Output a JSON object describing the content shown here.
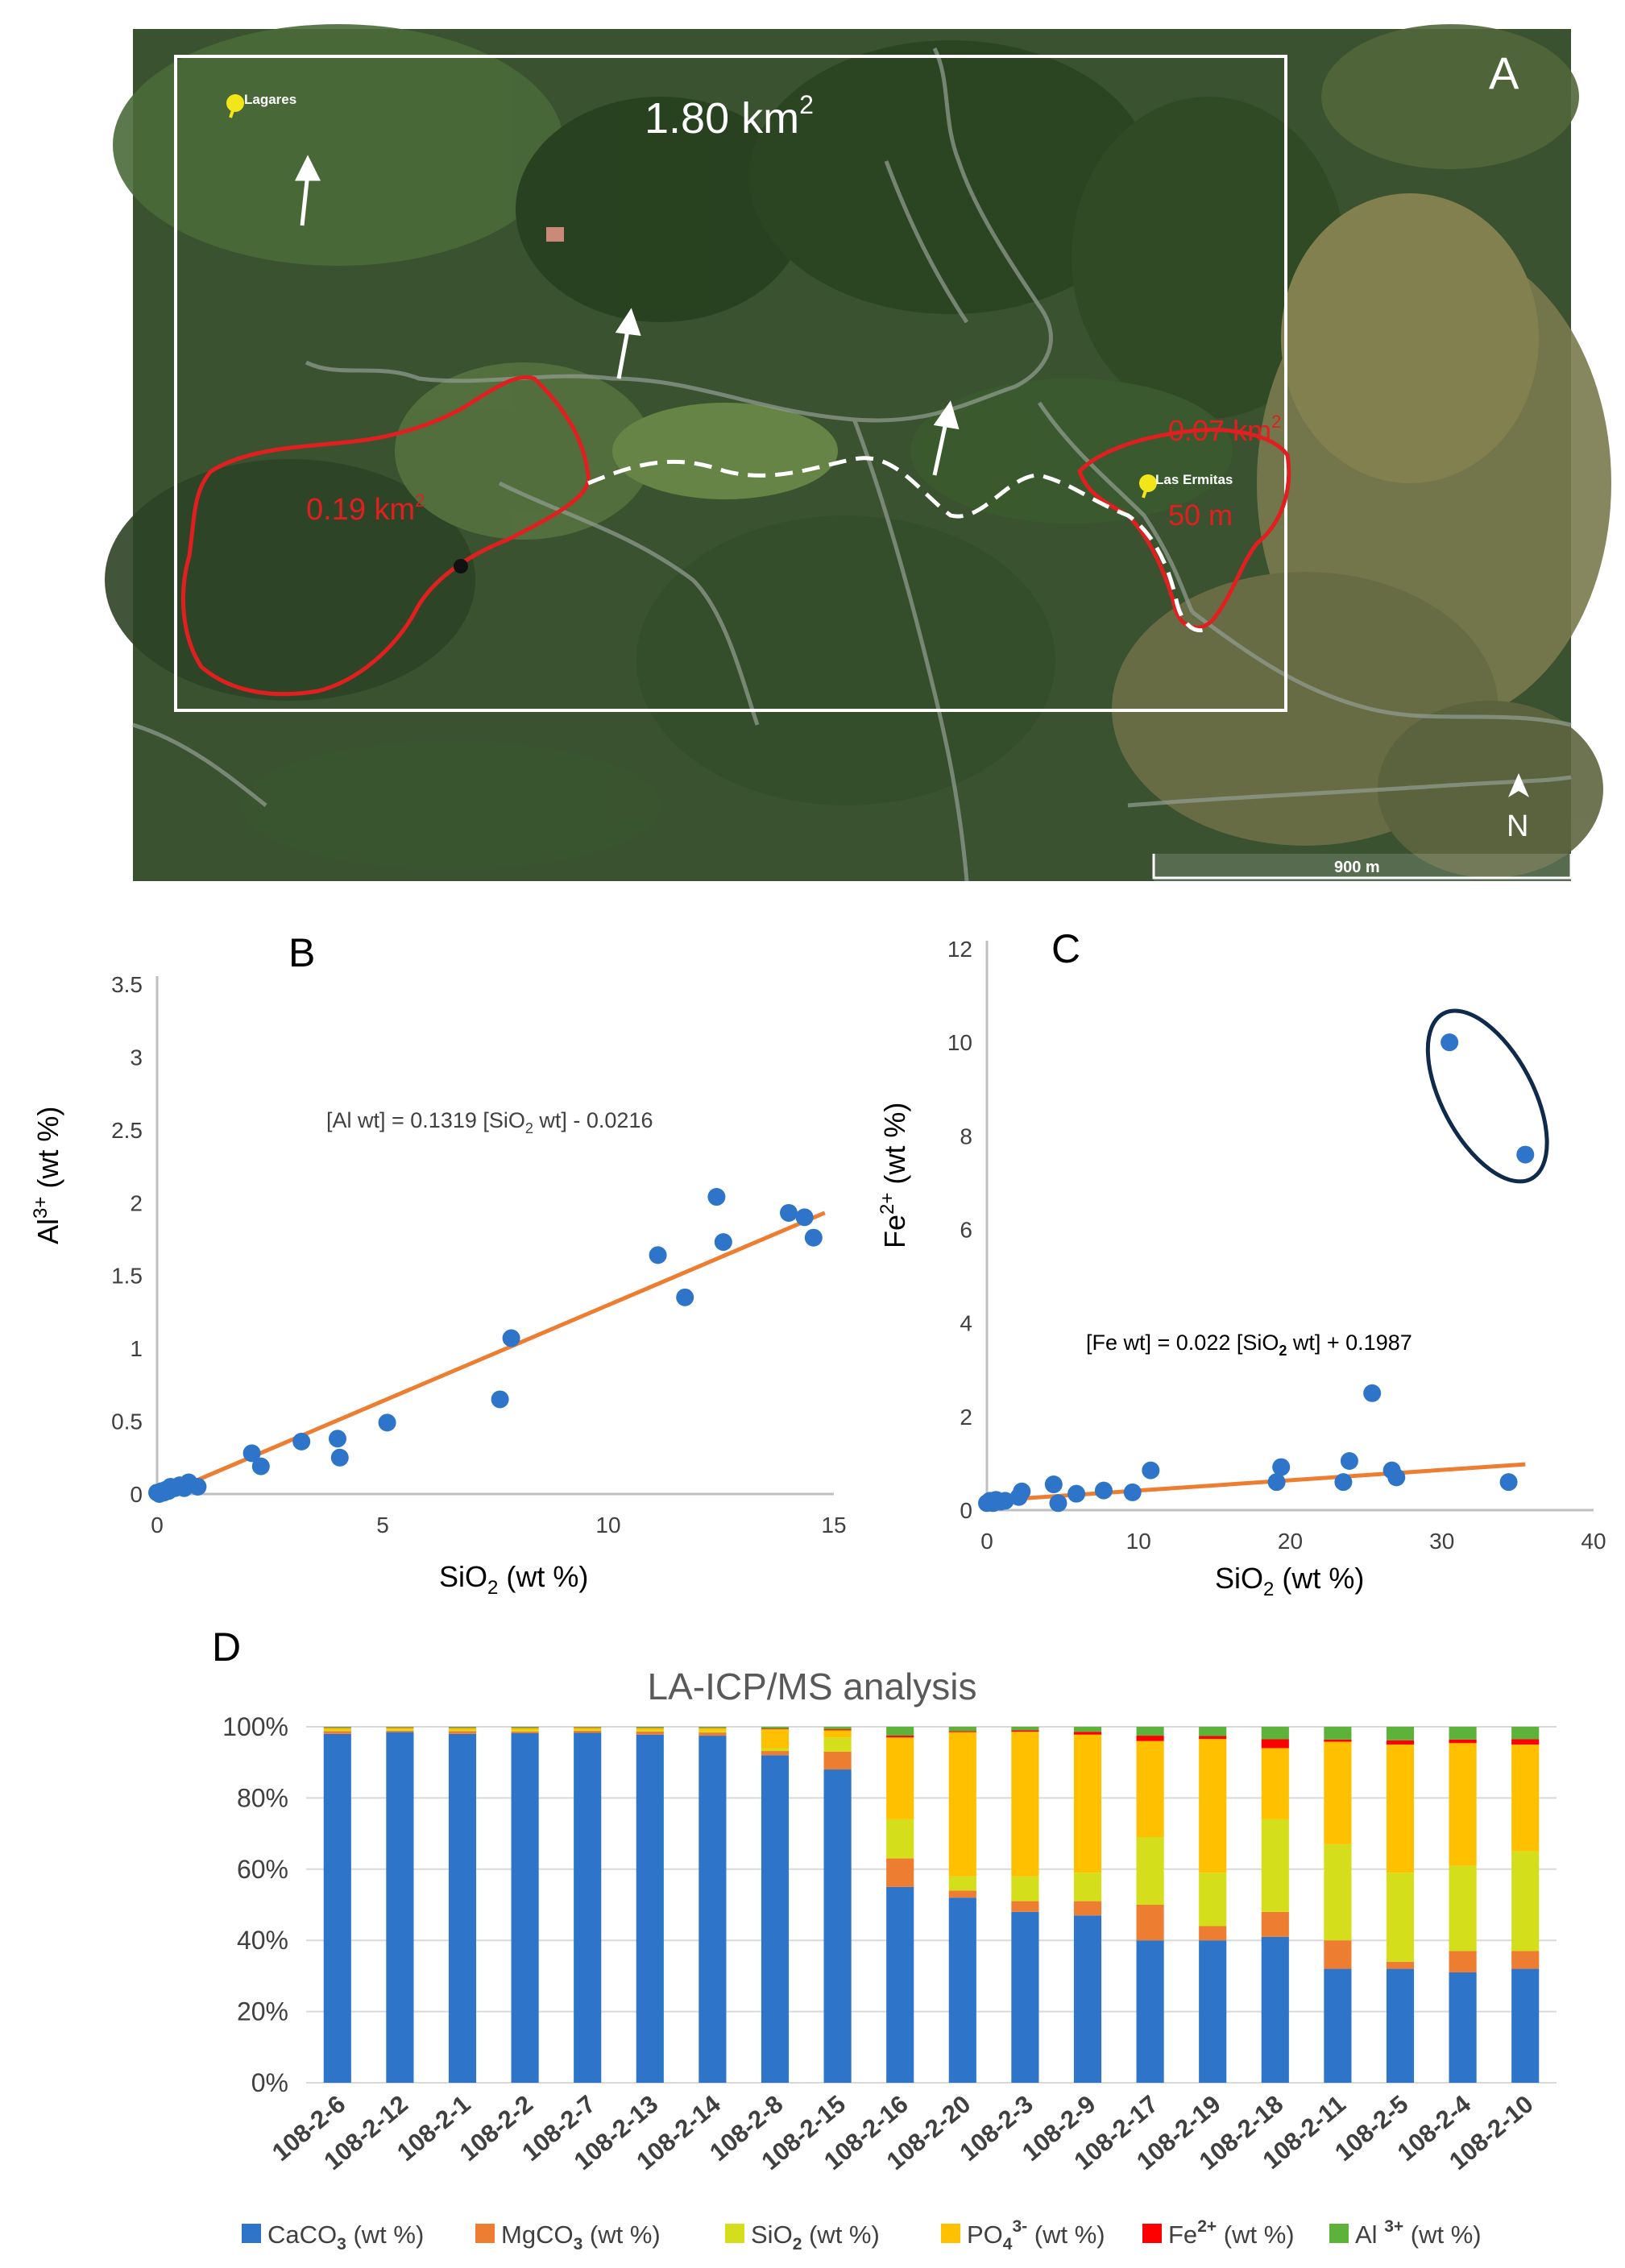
{
  "colors": {
    "blue": "#2E75C9",
    "orange": "#ED7D31",
    "lime": "#D4DE1A",
    "gold": "#FFC000",
    "red": "#FF0000",
    "green": "#5DB339",
    "boundary_red": "#E02020",
    "axis": "#BFBFBF",
    "text": "#404040",
    "ellipse": "#0F2A4A"
  },
  "panel_a": {
    "letter": "A",
    "area_label": "1.80 km",
    "area_sup": "2",
    "zone_west_label": "0.19 km",
    "zone_west_sup": "2",
    "zone_east_label": "0.07 km",
    "zone_east_sup": "2",
    "distance_label": "50 m",
    "place_lagares": "Lagares",
    "place_ermitas": "Las Ermitas",
    "scale_label": "900 m",
    "north_label": "N"
  },
  "chart_data": [
    {
      "id": "B",
      "type": "scatter",
      "letter": "B",
      "xlabel": "SiO",
      "xlabel_sub": "2",
      "xlabel_tail": " (wt %)",
      "ylabel": "Al",
      "ylabel_sup": "3+",
      "ylabel_tail": " (wt %)",
      "xlim": [
        0,
        15
      ],
      "ylim": [
        0,
        3.5
      ],
      "xticks": [
        "0",
        "5",
        "10",
        "15"
      ],
      "xtick_values": [
        0,
        5,
        10,
        15
      ],
      "yticks": [
        "0",
        "0.5",
        "1",
        "1.5",
        "2",
        "2.5",
        "3",
        "3.5"
      ],
      "ytick_values": [
        0,
        0.5,
        1,
        1.5,
        2,
        2.5,
        3,
        3.5
      ],
      "equation_prefix": "[Al wt] = 0.1319 [SiO",
      "equation_sub": "2",
      "equation_suffix": " wt] - 0.0216",
      "trend": {
        "slope": 0.1319,
        "intercept": -0.0216,
        "x0": 0.16,
        "x1": 14.8
      },
      "points": [
        {
          "x": 0.0,
          "y": 0.01
        },
        {
          "x": 0.05,
          "y": 0.0
        },
        {
          "x": 0.1,
          "y": 0.02
        },
        {
          "x": 0.15,
          "y": 0.01
        },
        {
          "x": 0.2,
          "y": 0.03
        },
        {
          "x": 0.25,
          "y": 0.02
        },
        {
          "x": 0.3,
          "y": 0.05
        },
        {
          "x": 0.4,
          "y": 0.04
        },
        {
          "x": 0.5,
          "y": 0.06
        },
        {
          "x": 0.6,
          "y": 0.04
        },
        {
          "x": 0.7,
          "y": 0.08
        },
        {
          "x": 0.9,
          "y": 0.05
        },
        {
          "x": 2.1,
          "y": 0.28
        },
        {
          "x": 2.3,
          "y": 0.19
        },
        {
          "x": 3.2,
          "y": 0.36
        },
        {
          "x": 4.0,
          "y": 0.38
        },
        {
          "x": 4.05,
          "y": 0.25
        },
        {
          "x": 5.1,
          "y": 0.49
        },
        {
          "x": 7.6,
          "y": 0.65
        },
        {
          "x": 7.85,
          "y": 1.07
        },
        {
          "x": 11.1,
          "y": 1.64
        },
        {
          "x": 11.7,
          "y": 1.35
        },
        {
          "x": 12.4,
          "y": 2.04
        },
        {
          "x": 12.55,
          "y": 1.73
        },
        {
          "x": 14.0,
          "y": 1.93
        },
        {
          "x": 14.35,
          "y": 1.9
        },
        {
          "x": 14.55,
          "y": 1.76
        }
      ]
    },
    {
      "id": "C",
      "type": "scatter",
      "letter": "C",
      "xlabel": "SiO",
      "xlabel_sub": "2",
      "xlabel_tail": " (wt %)",
      "ylabel": "Fe",
      "ylabel_sup": "2+",
      "ylabel_tail": " (wt %)",
      "xlim": [
        0,
        40
      ],
      "ylim": [
        0,
        12
      ],
      "xticks": [
        "0",
        "10",
        "20",
        "30",
        "40"
      ],
      "xtick_values": [
        0,
        10,
        20,
        30,
        40
      ],
      "yticks": [
        "0",
        "2",
        "4",
        "6",
        "8",
        "10",
        "12"
      ],
      "ytick_values": [
        0,
        2,
        4,
        6,
        8,
        10,
        12
      ],
      "equation_prefix": "[Fe wt] = 0.022 [SiO",
      "equation_sub": "2",
      "equation_suffix": " wt] + 0.1987",
      "trend": {
        "slope": 0.022,
        "intercept": 0.1987,
        "x0": 0.5,
        "x1": 35.5
      },
      "circled_outliers": {
        "cx": 33.0,
        "cy": 8.85,
        "rx": 3.0,
        "ry": 2.0
      },
      "points": [
        {
          "x": 0.0,
          "y": 0.15
        },
        {
          "x": 0.2,
          "y": 0.2
        },
        {
          "x": 0.4,
          "y": 0.15
        },
        {
          "x": 0.6,
          "y": 0.22
        },
        {
          "x": 0.9,
          "y": 0.18
        },
        {
          "x": 1.2,
          "y": 0.2
        },
        {
          "x": 2.1,
          "y": 0.28
        },
        {
          "x": 2.3,
          "y": 0.4
        },
        {
          "x": 4.4,
          "y": 0.55
        },
        {
          "x": 4.7,
          "y": 0.15
        },
        {
          "x": 5.9,
          "y": 0.35
        },
        {
          "x": 7.7,
          "y": 0.42
        },
        {
          "x": 9.6,
          "y": 0.38
        },
        {
          "x": 10.8,
          "y": 0.85
        },
        {
          "x": 19.1,
          "y": 0.6
        },
        {
          "x": 19.4,
          "y": 0.92
        },
        {
          "x": 23.5,
          "y": 0.6
        },
        {
          "x": 23.9,
          "y": 1.05
        },
        {
          "x": 25.4,
          "y": 2.5
        },
        {
          "x": 26.7,
          "y": 0.85
        },
        {
          "x": 27.0,
          "y": 0.7
        },
        {
          "x": 34.4,
          "y": 0.6
        },
        {
          "x": 30.5,
          "y": 10.0
        },
        {
          "x": 35.5,
          "y": 7.6
        }
      ]
    },
    {
      "id": "D",
      "type": "bar",
      "stacked": true,
      "percent": true,
      "letter": "D",
      "title": "LA-ICP/MS analysis",
      "yticks": [
        "0%",
        "20%",
        "40%",
        "60%",
        "80%",
        "100%"
      ],
      "ytick_values": [
        0,
        20,
        40,
        60,
        80,
        100
      ],
      "ylim": [
        0,
        100
      ],
      "categories": [
        "108-2-6",
        "108-2-12",
        "108-2-1",
        "108-2-2",
        "108-2-7",
        "108-2-13",
        "108-2-14",
        "108-2-8",
        "108-2-15",
        "108-2-16",
        "108-2-20",
        "108-2-3",
        "108-2-9",
        "108-2-17",
        "108-2-19",
        "108-2-18",
        "108-2-11",
        "108-2-5",
        "108-2-4",
        "108-2-10"
      ],
      "series": [
        {
          "name": "CaCO",
          "sub": "3",
          "sup": "",
          "tail": " (wt %)",
          "color": "#2E75C9",
          "values": [
            98,
            98.5,
            98,
            98.2,
            98.3,
            97.8,
            97.5,
            92,
            88,
            55,
            52,
            48,
            47,
            40,
            40,
            41,
            32,
            32,
            31,
            32
          ]
        },
        {
          "name": "MgCO",
          "sub": "3",
          "sup": "",
          "tail": " (wt %)",
          "color": "#ED7D31",
          "values": [
            0.8,
            0.4,
            0.8,
            0.5,
            0.6,
            0.9,
            0.9,
            1.2,
            5,
            8,
            2,
            3,
            4,
            10,
            4,
            7,
            8,
            2,
            6,
            5
          ]
        },
        {
          "name": "SiO",
          "sub": "2",
          "sup": "",
          "tail": " (wt %)",
          "color": "#D4DE1A",
          "values": [
            0.3,
            0.4,
            0.3,
            0.4,
            0.3,
            0.4,
            0.5,
            0.8,
            4,
            11,
            4,
            7,
            8,
            19,
            15,
            26,
            27,
            25,
            24,
            28
          ]
        },
        {
          "name": "PO",
          "sub": "4",
          "sup": "3-",
          "tail": " (wt %)",
          "color": "#FFC000",
          "values": [
            0.5,
            0.4,
            0.5,
            0.5,
            0.5,
            0.5,
            0.7,
            5.3,
            2.0,
            23,
            40.5,
            40.6,
            38.8,
            27,
            37.6,
            20,
            28.8,
            36,
            34.4,
            30
          ]
        },
        {
          "name": "Fe",
          "sub": "",
          "sup": "2+",
          "tail": "  (wt %)",
          "color": "#FF0000",
          "values": [
            0.1,
            0.1,
            0.1,
            0.1,
            0.1,
            0.1,
            0.1,
            0.2,
            0.3,
            0.5,
            0.3,
            0.4,
            0.8,
            1.5,
            0.8,
            2.5,
            0.6,
            1.2,
            1.0,
            1.5
          ]
        },
        {
          "name": "Al ",
          "sub": "",
          "sup": "3+",
          "tail": " (wt %)",
          "color": "#5DB339",
          "values": [
            0.3,
            0.2,
            0.3,
            0.3,
            0.2,
            0.3,
            0.3,
            0.5,
            0.7,
            2.5,
            1.2,
            1.0,
            1.4,
            2.5,
            2.6,
            3.5,
            3.6,
            3.8,
            3.6,
            3.5
          ]
        }
      ]
    }
  ]
}
